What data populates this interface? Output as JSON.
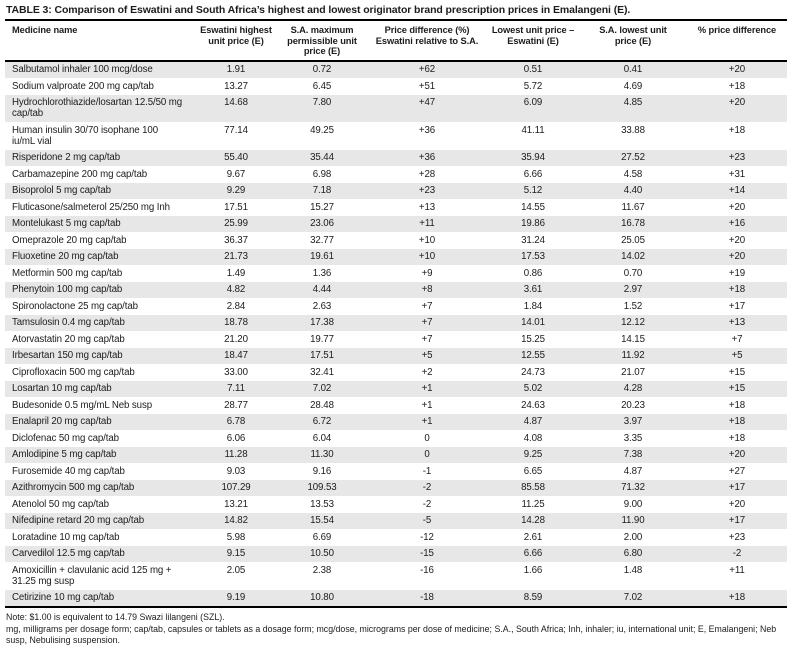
{
  "title": {
    "label": "TABLE 3:",
    "text": "Comparison of Eswatini and South Africa’s highest and lowest originator brand prescription prices in Emalangeni (E)."
  },
  "table": {
    "columns": [
      "Medicine name",
      "Eswatini highest\nunit price (E)",
      "S.A. maximum\npermissible unit\nprice (E)",
      "Price difference (%)\nEswatini relative to S.A.",
      "Lowest unit price –\nEswatini (E)",
      "S.A. lowest unit\nprice (E)",
      "% price difference"
    ],
    "rows": [
      [
        "Salbutamol inhaler 100 mcg/dose",
        "1.91",
        "0.72",
        "+62",
        "0.51",
        "0.41",
        "+20"
      ],
      [
        "Sodium valproate 200 mg cap/tab",
        "13.27",
        "6.45",
        "+51",
        "5.72",
        "4.69",
        "+18"
      ],
      [
        "Hydrochlorothiazide/losartan 12.5/50 mg cap/tab",
        "14.68",
        "7.80",
        "+47",
        "6.09",
        "4.85",
        "+20"
      ],
      [
        "Human insulin 30/70 isophane 100 iu/mL vial",
        "77.14",
        "49.25",
        "+36",
        "41.11",
        "33.88",
        "+18"
      ],
      [
        "Risperidone 2 mg cap/tab",
        "55.40",
        "35.44",
        "+36",
        "35.94",
        "27.52",
        "+23"
      ],
      [
        "Carbamazepine 200 mg cap/tab",
        "9.67",
        "6.98",
        "+28",
        "6.66",
        "4.58",
        "+31"
      ],
      [
        "Bisoprolol 5 mg cap/tab",
        "9.29",
        "7.18",
        "+23",
        "5.12",
        "4.40",
        "+14"
      ],
      [
        "Fluticasone/salmeterol 25/250 mg Inh",
        "17.51",
        "15.27",
        "+13",
        "14.55",
        "11.67",
        "+20"
      ],
      [
        "Montelukast 5 mg cap/tab",
        "25.99",
        "23.06",
        "+11",
        "19.86",
        "16.78",
        "+16"
      ],
      [
        "Omeprazole 20 mg cap/tab",
        "36.37",
        "32.77",
        "+10",
        "31.24",
        "25.05",
        "+20"
      ],
      [
        "Fluoxetine 20 mg cap/tab",
        "21.73",
        "19.61",
        "+10",
        "17.53",
        "14.02",
        "+20"
      ],
      [
        "Metformin 500 mg cap/tab",
        "1.49",
        "1.36",
        "+9",
        "0.86",
        "0.70",
        "+19"
      ],
      [
        "Phenytoin 100 mg cap/tab",
        "4.82",
        "4.44",
        "+8",
        "3.61",
        "2.97",
        "+18"
      ],
      [
        "Spironolactone 25 mg cap/tab",
        "2.84",
        "2.63",
        "+7",
        "1.84",
        "1.52",
        "+17"
      ],
      [
        "Tamsulosin 0.4 mg cap/tab",
        "18.78",
        "17.38",
        "+7",
        "14.01",
        "12.12",
        "+13"
      ],
      [
        "Atorvastatin 20 mg cap/tab",
        "21.20",
        "19.77",
        "+7",
        "15.25",
        "14.15",
        "+7"
      ],
      [
        "Irbesartan 150 mg cap/tab",
        "18.47",
        "17.51",
        "+5",
        "12.55",
        "11.92",
        "+5"
      ],
      [
        "Ciprofloxacin 500 mg cap/tab",
        "33.00",
        "32.41",
        "+2",
        "24.73",
        "21.07",
        "+15"
      ],
      [
        "Losartan 10 mg cap/tab",
        "7.11",
        "7.02",
        "+1",
        "5.02",
        "4.28",
        "+15"
      ],
      [
        "Budesonide 0.5 mg/mL Neb susp",
        "28.77",
        "28.48",
        "+1",
        "24.63",
        "20.23",
        "+18"
      ],
      [
        "Enalapril 20 mg cap/tab",
        "6.78",
        "6.72",
        "+1",
        "4.87",
        "3.97",
        "+18"
      ],
      [
        "Diclofenac 50 mg cap/tab",
        "6.06",
        "6.04",
        "0",
        "4.08",
        "3.35",
        "+18"
      ],
      [
        "Amlodipine 5 mg cap/tab",
        "11.28",
        "11.30",
        "0",
        "9.25",
        "7.38",
        "+20"
      ],
      [
        "Furosemide 40 mg cap/tab",
        "9.03",
        "9.16",
        "-1",
        "6.65",
        "4.87",
        "+27"
      ],
      [
        "Azithromycin 500 mg cap/tab",
        "107.29",
        "109.53",
        "-2",
        "85.58",
        "71.32",
        "+17"
      ],
      [
        "Atenolol 50 mg cap/tab",
        "13.21",
        "13.53",
        "-2",
        "11.25",
        "9.00",
        "+20"
      ],
      [
        "Nifedipine retard 20 mg cap/tab",
        "14.82",
        "15.54",
        "-5",
        "14.28",
        "11.90",
        "+17"
      ],
      [
        "Loratadine 10 mg cap/tab",
        "5.98",
        "6.69",
        "-12",
        "2.61",
        "2.00",
        "+23"
      ],
      [
        "Carvedilol 12.5 mg cap/tab",
        "9.15",
        "10.50",
        "-15",
        "6.66",
        "6.80",
        "-2"
      ],
      [
        "Amoxicillin + clavulanic acid 125 mg + 31.25 mg susp",
        "2.05",
        "2.38",
        "-16",
        "1.66",
        "1.48",
        "+11"
      ],
      [
        "Cetirizine 10 mg cap/tab",
        "9.19",
        "10.80",
        "-18",
        "8.59",
        "7.02",
        "+18"
      ]
    ]
  },
  "notes": {
    "exchange_rate": "Note: $1.00 is equivalent to 14.79 Swazi lilangeni (SZL).",
    "abbreviations": "mg, milligrams per dosage form; cap/tab, capsules or tablets as a dosage form; mcg/dose, micrograms per dose of medicine; S.A., South Africa; Inh, inhaler; iu, international unit; E, Emalangeni; Neb susp, Nebulising suspension."
  },
  "colors": {
    "row_shading": "#e7e7e7",
    "rule": "#000000",
    "text": "#1c1c1c"
  }
}
